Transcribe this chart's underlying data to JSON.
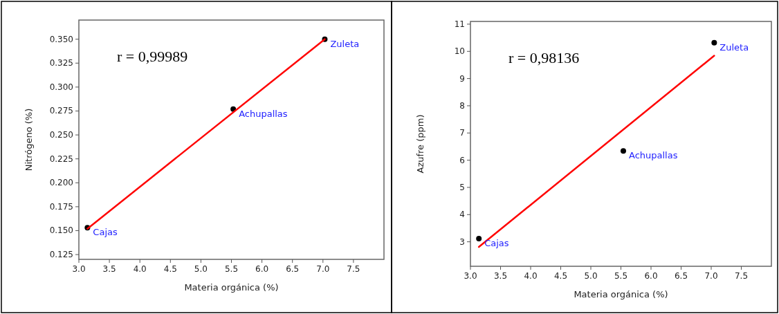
{
  "chart_data": [
    {
      "type": "scatter",
      "xlabel": "Materia orgánica (%)",
      "ylabel": "Nitrógeno (%)",
      "xlim": [
        3.0,
        8.0
      ],
      "xticks": [
        {
          "value": 3.0,
          "label": "3.0"
        },
        3.5,
        {
          "value": 4.0,
          "label": "4.0"
        },
        4.5,
        {
          "value": 5.0,
          "label": "5.0"
        },
        5.5,
        {
          "value": 6.0,
          "label": "6.0"
        },
        6.5,
        {
          "value": 7.0,
          "label": "7.0"
        },
        7.5
      ],
      "ylim": [
        0.12,
        0.37
      ],
      "yticks": [
        {
          "value": 0.125,
          "label": "0.125"
        },
        {
          "value": 0.15,
          "label": "0.150"
        },
        {
          "value": 0.175,
          "label": "0.175"
        },
        {
          "value": 0.2,
          "label": "0.200"
        },
        {
          "value": 0.225,
          "label": "0.225"
        },
        {
          "value": 0.25,
          "label": "0.250"
        },
        {
          "value": 0.275,
          "label": "0.275"
        },
        {
          "value": 0.3,
          "label": "0.300"
        },
        {
          "value": 0.325,
          "label": "0.325"
        },
        {
          "value": 0.35,
          "label": "0.350"
        }
      ],
      "grid": false,
      "series": [
        {
          "color": "#000000",
          "marker": "circle",
          "x": [
            3.14,
            5.53,
            7.03
          ],
          "values": [
            0.153,
            0.277,
            0.35
          ]
        },
        {
          "type": "line",
          "color": "#ff0000",
          "x": [
            3.14,
            7.03
          ],
          "values": [
            0.152,
            0.35
          ]
        }
      ],
      "annotations": [
        "r = 0,99989",
        {
          "text": "Cajas",
          "x": 3.14,
          "y": 0.153
        },
        {
          "text": "Achupallas",
          "x": 5.53,
          "y": 0.277
        },
        {
          "text": "Zuleta",
          "x": 7.03,
          "y": 0.35
        }
      ]
    },
    {
      "type": "scatter",
      "xlabel": "Materia orgánica (%)",
      "ylabel": "Azufre (ppm)",
      "xlim": [
        3.0,
        8.0
      ],
      "xticks": [
        {
          "value": 3.0,
          "label": "3.0"
        },
        3.5,
        {
          "value": 4.0,
          "label": "4.0"
        },
        4.5,
        {
          "value": 5.0,
          "label": "5.0"
        },
        5.5,
        {
          "value": 6.0,
          "label": "6.0"
        },
        6.5,
        {
          "value": 7.0,
          "label": "7.0"
        },
        7.5
      ],
      "ylim": [
        2.1,
        11.1
      ],
      "yticks": [
        3,
        4,
        5,
        6,
        7,
        8,
        9,
        10,
        11
      ],
      "grid": false,
      "series": [
        {
          "color": "#000000",
          "marker": "circle",
          "x": [
            3.14,
            5.54,
            7.05
          ],
          "values": [
            3.12,
            6.34,
            10.32
          ]
        },
        {
          "type": "line",
          "color": "#ff0000",
          "x": [
            3.14,
            7.05
          ],
          "values": [
            2.81,
            9.84
          ]
        }
      ],
      "annotations": [
        "r = 0,98136",
        {
          "text": "Cajas",
          "x": 3.14,
          "y": 3.12
        },
        {
          "text": "Achupallas",
          "x": 5.54,
          "y": 6.34
        },
        {
          "text": "Zuleta",
          "x": 7.05,
          "y": 10.32
        }
      ]
    }
  ]
}
